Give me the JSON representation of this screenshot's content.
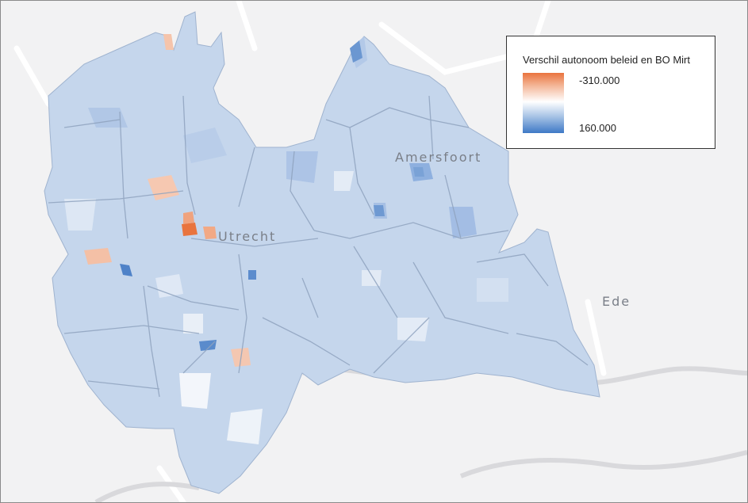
{
  "map": {
    "cities": {
      "utrecht": "Utrecht",
      "amersfoort": "Amersfoort",
      "ede": "Ede"
    }
  },
  "legend": {
    "title": "Verschil autonoom beleid en BO Mirt",
    "max_label": "-310.000",
    "min_label": "160.000",
    "colors": {
      "high": "#e9743e",
      "mid": "#ffffff",
      "low": "#3f79c6",
      "base": "#c5d6ec"
    }
  }
}
